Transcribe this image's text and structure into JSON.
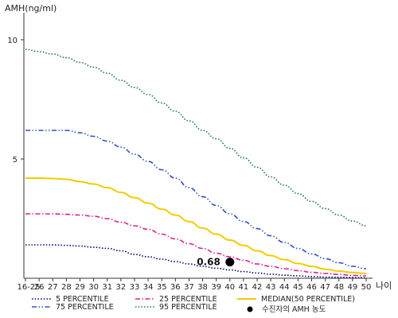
{
  "chart_data": {
    "type": "line",
    "ylabel": "AMH(ng/ml)",
    "xlabel": "나이",
    "ylim": [
      0,
      11
    ],
    "yticks": [
      10,
      5
    ],
    "categories": [
      "16-25",
      "26",
      "27",
      "28",
      "29",
      "30",
      "31",
      "32",
      "33",
      "34",
      "35",
      "36",
      "37",
      "38",
      "39",
      "40",
      "41",
      "42",
      "43",
      "44",
      "45",
      "46",
      "47",
      "48",
      "49",
      "50"
    ],
    "series": [
      {
        "name": "5 PERCENTILE",
        "color": "#000080",
        "style": "dotted",
        "values": [
          1.4,
          1.4,
          1.4,
          1.38,
          1.35,
          1.3,
          1.25,
          1.15,
          1.0,
          0.9,
          0.8,
          0.7,
          0.6,
          0.5,
          0.42,
          0.35,
          0.28,
          0.22,
          0.17,
          0.13,
          0.1,
          0.07,
          0.05,
          0.04,
          0.03,
          0.02
        ]
      },
      {
        "name": "25 PERCENTILE",
        "color": "#e0208a",
        "style": "dashdot",
        "values": [
          2.7,
          2.7,
          2.7,
          2.68,
          2.65,
          2.6,
          2.5,
          2.35,
          2.2,
          2.05,
          1.85,
          1.65,
          1.45,
          1.25,
          1.05,
          0.9,
          0.75,
          0.6,
          0.5,
          0.4,
          0.32,
          0.25,
          0.2,
          0.16,
          0.12,
          0.1
        ]
      },
      {
        "name": "MEDIAN(50 PERCENTILE)",
        "color": "#f2cc00",
        "style": "solid",
        "values": [
          4.2,
          4.2,
          4.18,
          4.15,
          4.05,
          3.95,
          3.8,
          3.6,
          3.38,
          3.15,
          2.9,
          2.65,
          2.38,
          2.1,
          1.85,
          1.6,
          1.38,
          1.15,
          0.95,
          0.78,
          0.62,
          0.5,
          0.38,
          0.3,
          0.24,
          0.2
        ]
      },
      {
        "name": "75 PERCENTILE",
        "color": "#3050c0",
        "style": "dashdotdot",
        "values": [
          6.2,
          6.2,
          6.2,
          6.2,
          6.1,
          5.95,
          5.75,
          5.5,
          5.2,
          4.9,
          4.55,
          4.2,
          3.8,
          3.42,
          3.05,
          2.7,
          2.38,
          2.08,
          1.78,
          1.5,
          1.25,
          1.02,
          0.82,
          0.65,
          0.5,
          0.4
        ]
      },
      {
        "name": "95 PERCENTILE",
        "color": "#1a7a3a",
        "style": "dotted",
        "values": [
          9.6,
          9.5,
          9.4,
          9.25,
          9.05,
          8.85,
          8.6,
          8.3,
          8.0,
          7.7,
          7.35,
          7.0,
          6.6,
          6.2,
          5.85,
          5.45,
          5.05,
          4.65,
          4.25,
          3.9,
          3.55,
          3.22,
          2.92,
          2.65,
          2.4,
          2.2
        ]
      }
    ],
    "marker": {
      "name": "수진자의 AMH 농도",
      "x": "40",
      "y": 0.68,
      "label": "0.68",
      "color": "#000000"
    },
    "legend": {
      "placement": "bottom",
      "order": [
        "5 PERCENTILE",
        "25 PERCENTILE",
        "MEDIAN(50 PERCENTILE)",
        "75 PERCENTILE",
        "95 PERCENTILE",
        "수진자의 AMH 농도"
      ]
    },
    "grid": false
  }
}
